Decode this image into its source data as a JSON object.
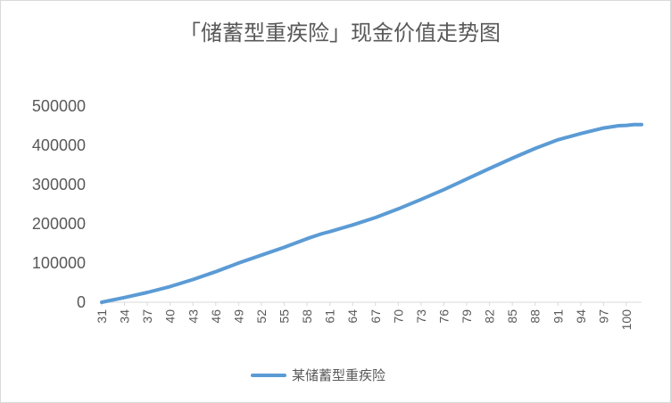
{
  "chart_data": {
    "type": "line",
    "title": "「储蓄型重疾险」现金价值走势图",
    "xlabel": "",
    "ylabel": "",
    "x_tick_labels": [
      "31",
      "34",
      "37",
      "40",
      "43",
      "46",
      "49",
      "52",
      "55",
      "58",
      "61",
      "64",
      "67",
      "70",
      "73",
      "76",
      "79",
      "82",
      "85",
      "88",
      "91",
      "94",
      "97",
      "100"
    ],
    "y_tick_labels": [
      "0",
      "100000",
      "200000",
      "300000",
      "400000",
      "500000"
    ],
    "ylim": [
      0,
      500000
    ],
    "xlim": [
      31,
      102
    ],
    "grid": false,
    "legend": "bottom",
    "series": [
      {
        "name": "某储蓄型重疾险",
        "color": "#5b9bd5",
        "x": [
          31,
          34,
          37,
          40,
          43,
          46,
          49,
          52,
          55,
          58,
          60,
          61,
          64,
          67,
          70,
          73,
          76,
          79,
          82,
          85,
          88,
          91,
          94,
          97,
          99,
          100,
          101,
          102
        ],
        "y": [
          0,
          12000,
          25000,
          40000,
          58000,
          78000,
          100000,
          120000,
          140000,
          162000,
          175000,
          180000,
          197000,
          216000,
          238000,
          262000,
          287000,
          314000,
          341000,
          367000,
          392000,
          414000,
          430000,
          444000,
          450000,
          451000,
          453000,
          453000
        ]
      }
    ]
  }
}
